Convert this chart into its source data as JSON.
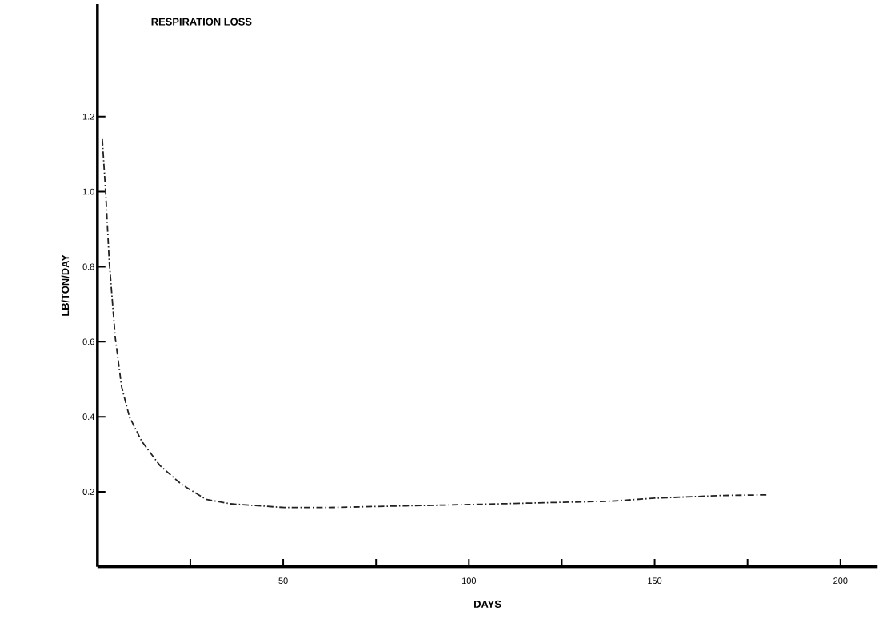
{
  "chart_data": {
    "type": "line",
    "title": "RESPIRATION LOSS",
    "xlabel": "DAYS",
    "ylabel": "LB/TON/DAY",
    "x": [
      1.3,
      2.2,
      3.2,
      4.8,
      6.5,
      8.6,
      11.9,
      16.8,
      22.6,
      29.2,
      35.8,
      50.4,
      62,
      80,
      100,
      120.7,
      138,
      150,
      167.5,
      180.4
    ],
    "series": [
      {
        "color": "#222222",
        "values": [
          1.14,
          1.0,
          0.81,
          0.61,
          0.48,
          0.4,
          0.335,
          0.27,
          0.22,
          0.18,
          0.168,
          0.158,
          0.158,
          0.162,
          0.166,
          0.171,
          0.175,
          0.183,
          0.19,
          0.192
        ]
      }
    ],
    "xlim": [
      0,
      210
    ],
    "ylim": [
      0,
      1.5
    ],
    "xticks": [
      {
        "value": 25,
        "label": null
      },
      50,
      {
        "value": 75,
        "label": null
      },
      100,
      {
        "value": 125,
        "label": null
      },
      150,
      {
        "value": 175,
        "label": null
      },
      200
    ],
    "yticks": [
      0.2,
      0.4,
      0.6,
      0.8,
      {
        "value": 1,
        "label": "1.0"
      },
      1.2
    ],
    "line_style": "dashed",
    "marker": "none",
    "grid": false
  }
}
